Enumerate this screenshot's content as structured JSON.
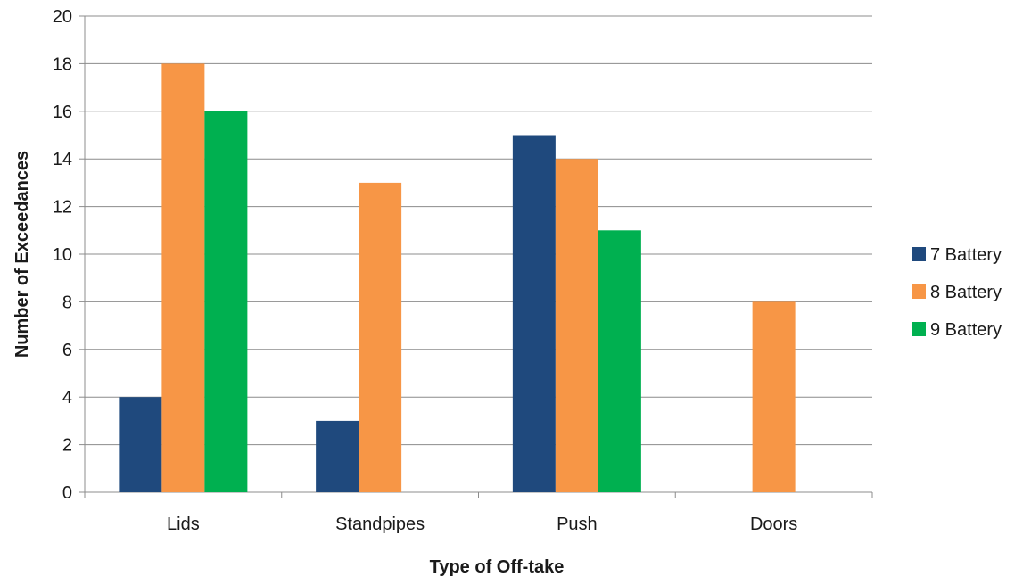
{
  "chart_data": {
    "type": "bar",
    "title": "",
    "xlabel": "Type of Off-take",
    "ylabel": "Number of Exceedances",
    "ylim": [
      0,
      20
    ],
    "yticks": [
      0,
      2,
      4,
      6,
      8,
      10,
      12,
      14,
      16,
      18,
      20
    ],
    "categories": [
      "Lids",
      "Standpipes",
      "Push",
      "Doors"
    ],
    "series": [
      {
        "name": "7 Battery",
        "color": "#1f497d",
        "values": [
          4,
          3,
          15,
          0
        ]
      },
      {
        "name": "8 Battery",
        "color": "#f79646",
        "values": [
          18,
          13,
          14,
          8
        ]
      },
      {
        "name": "9 Battery",
        "color": "#00b050",
        "values": [
          16,
          0,
          11,
          0
        ]
      }
    ],
    "grid": true,
    "legend_position": "right"
  }
}
